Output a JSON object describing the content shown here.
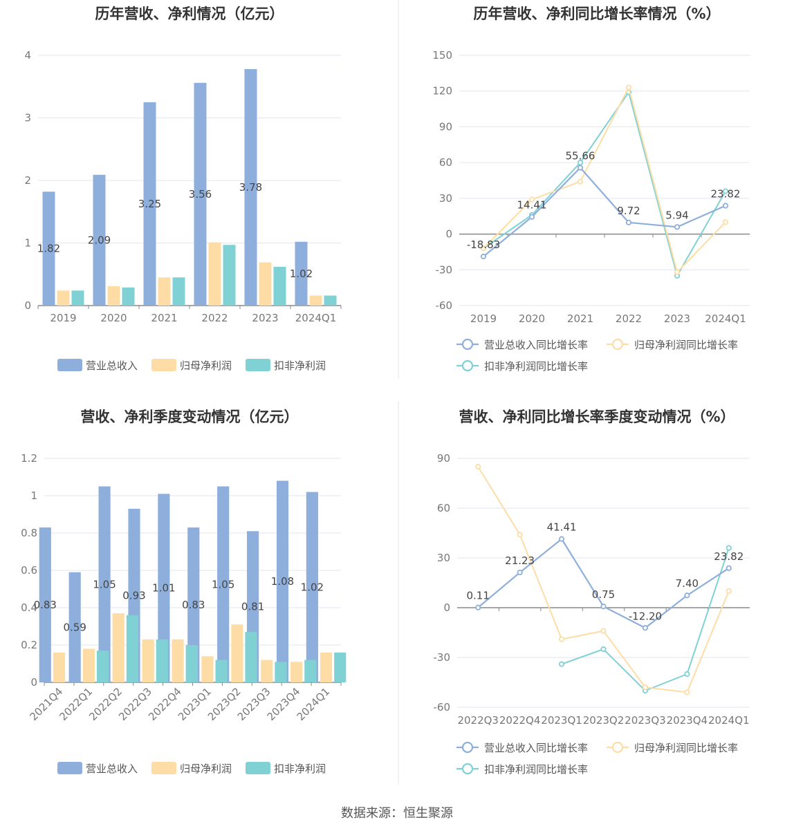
{
  "colors": {
    "revenue": "#8eaedc",
    "parent_profit": "#fddda5",
    "deducted_profit": "#7fd1d4",
    "axis": "#888888",
    "grid": "#e3e6f0",
    "title": "#333333",
    "label": "#444444"
  },
  "footer": {
    "source": "数据来源：恒生聚源"
  },
  "chart_data": [
    {
      "type": "bar",
      "title": "历年营收、净利情况（亿元）",
      "categories": [
        "2019",
        "2020",
        "2021",
        "2022",
        "2023",
        "2024Q1"
      ],
      "ylim": [
        0,
        4
      ],
      "yticks": [
        "0",
        "1",
        "2",
        "3",
        "4"
      ],
      "grid": true,
      "legend_position": "bottom",
      "series": [
        {
          "name": "营业总收入",
          "values": [
            1.82,
            2.09,
            3.25,
            3.56,
            3.78,
            1.02
          ],
          "labels": [
            "1.82",
            "2.09",
            "3.25",
            "3.56",
            "3.78",
            "1.02"
          ]
        },
        {
          "name": "归母净利润",
          "values": [
            0.24,
            0.31,
            0.45,
            1.01,
            0.69,
            0.16
          ]
        },
        {
          "name": "扣非净利润",
          "values": [
            0.24,
            0.29,
            0.45,
            0.97,
            0.62,
            0.16
          ]
        }
      ]
    },
    {
      "type": "line",
      "title": "历年营收、净利同比增长率情况（%）",
      "categories": [
        "2019",
        "2020",
        "2021",
        "2022",
        "2023",
        "2024Q1"
      ],
      "ylim": [
        -60,
        150
      ],
      "yticks": [
        "150",
        "120",
        "90",
        "60",
        "30",
        "0",
        "-30",
        "-60"
      ],
      "grid": true,
      "legend_position": "bottom",
      "series": [
        {
          "name": "营业总收入同比增长率",
          "values": [
            -18.83,
            14.41,
            55.66,
            9.72,
            5.94,
            23.82
          ],
          "labels": [
            "-18.83",
            "14.41",
            "55.66",
            "9.72",
            "5.94",
            "23.82"
          ]
        },
        {
          "name": "归母净利润同比增长率",
          "values": [
            -12,
            29,
            44,
            123,
            -32,
            10
          ]
        },
        {
          "name": "扣非净利润同比增长率",
          "values": [
            -12,
            16,
            60,
            119,
            -35,
            36
          ]
        }
      ]
    },
    {
      "type": "bar",
      "title": "营收、净利季度变动情况（亿元）",
      "categories": [
        "2021Q4",
        "2022Q1",
        "2022Q2",
        "2022Q3",
        "2022Q4",
        "2023Q1",
        "2023Q2",
        "2023Q3",
        "2023Q4",
        "2024Q1"
      ],
      "ylim": [
        0,
        1.2
      ],
      "yticks": [
        "0",
        "0.2",
        "0.4",
        "0.6",
        "0.8",
        "1",
        "1.2"
      ],
      "grid": true,
      "legend_position": "bottom",
      "series": [
        {
          "name": "营业总收入",
          "values": [
            0.83,
            0.59,
            1.05,
            0.93,
            1.01,
            0.83,
            1.05,
            0.81,
            1.08,
            1.02
          ],
          "labels": [
            "0.83",
            "0.59",
            "1.05",
            "0.93",
            "1.01",
            "0.83",
            "1.05",
            "0.81",
            "1.08",
            "1.02"
          ]
        },
        {
          "name": "归母净利润",
          "values": [
            0.16,
            0.18,
            0.37,
            0.23,
            0.23,
            0.14,
            0.31,
            0.12,
            0.11,
            0.16
          ]
        },
        {
          "name": "扣非净利润",
          "values": [
            null,
            0.17,
            0.36,
            0.23,
            0.2,
            0.12,
            0.27,
            0.11,
            0.12,
            0.16
          ]
        }
      ]
    },
    {
      "type": "line",
      "title": "营收、净利同比增长率季度变动情况（%）",
      "categories": [
        "2022Q3",
        "2022Q4",
        "2023Q1",
        "2023Q2",
        "2023Q3",
        "2023Q4",
        "2024Q1"
      ],
      "ylim": [
        -60,
        90
      ],
      "yticks": [
        "90",
        "60",
        "30",
        "0",
        "-30",
        "-60"
      ],
      "grid": true,
      "legend_position": "bottom",
      "series": [
        {
          "name": "营业总收入同比增长率",
          "values": [
            0.11,
            21.23,
            41.41,
            0.75,
            -12.2,
            7.4,
            23.82
          ],
          "labels": [
            "0.11",
            "21.23",
            "41.41",
            "0.75",
            "-12.20",
            "7.40",
            "23.82"
          ]
        },
        {
          "name": "归母净利润同比增长率",
          "values": [
            85,
            44,
            -19,
            -14,
            -48,
            -51,
            10
          ]
        },
        {
          "name": "扣非净利润同比增长率",
          "values": [
            null,
            null,
            -34,
            -25,
            -50,
            -40,
            36
          ]
        }
      ]
    }
  ]
}
